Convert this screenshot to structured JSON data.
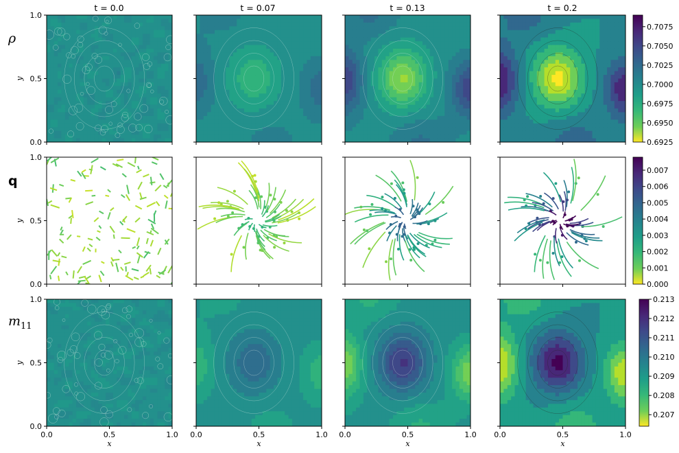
{
  "chart_data": {
    "type": "heatmap",
    "columns": [
      {
        "title": "t = 0.0"
      },
      {
        "title": "t = 0.07"
      },
      {
        "title": "t = 0.13"
      },
      {
        "title": "t = 0.2"
      }
    ],
    "rows": [
      {
        "label": "ρ",
        "kind": "contour",
        "colormap": "viridis_r",
        "colorbar_ticks": [
          "0.7075",
          "0.7050",
          "0.7025",
          "0.7000",
          "0.6975",
          "0.6950",
          "0.6925"
        ],
        "colorbar_range": [
          0.6925,
          0.709
        ]
      },
      {
        "label": "q",
        "kind": "streamplot",
        "colormap": "viridis_r",
        "colorbar_ticks": [
          "0.007",
          "0.006",
          "0.005",
          "0.004",
          "0.003",
          "0.002",
          "0.001",
          "0.000"
        ],
        "colorbar_range": [
          0.0,
          0.0078
        ]
      },
      {
        "label": "m",
        "label_sub": "11",
        "kind": "contour",
        "colormap": "viridis_r",
        "colorbar_ticks": [
          "0.213",
          "0.212",
          "0.211",
          "0.210",
          "0.209",
          "0.208",
          "0.207"
        ],
        "colorbar_range": [
          0.2064,
          0.213
        ]
      }
    ],
    "xlabel": "x",
    "ylabel": "y",
    "x_ticks": [
      "0.0",
      "0.5",
      "1.0"
    ],
    "y_ticks": [
      "0.0",
      "0.5",
      "1.0"
    ],
    "xlim": [
      0,
      1
    ],
    "ylim": [
      0,
      1
    ]
  },
  "colors": {
    "viridis_dark": "#440154",
    "viridis_mid": "#21918c",
    "viridis_light": "#fde725"
  }
}
